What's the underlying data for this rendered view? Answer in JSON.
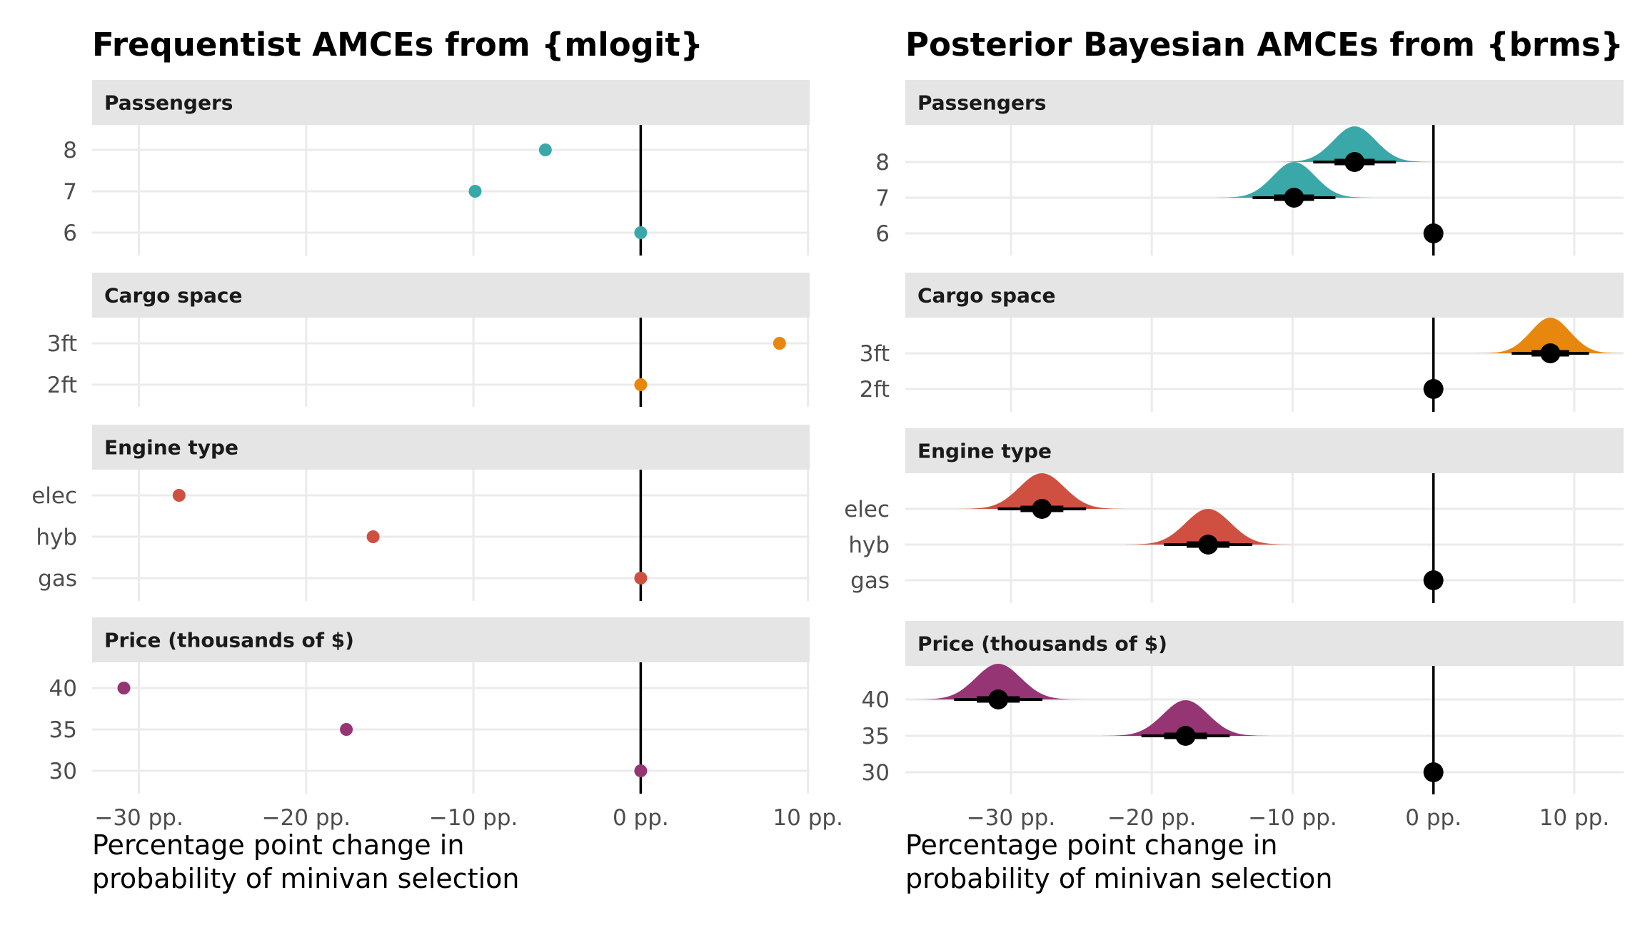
{
  "colors": {
    "background": "#ffffff",
    "strip": "#e5e5e5",
    "grid": "#ebebeb",
    "reference_line": "#000000",
    "passengers": "#3aa8a8",
    "cargo": "#e8870e",
    "engine": "#cf5040",
    "price": "#953574"
  },
  "chart_data": [
    {
      "type": "scatter",
      "title": "Frequentist AMCEs from {mlogit}",
      "xlabel": "Percentage point change in\nprobability of minivan selection",
      "xlabel_lines": [
        "Percentage point change in",
        "probability of minivan selection"
      ],
      "x_ticks": [
        -30,
        -20,
        -10,
        0,
        10
      ],
      "x_tick_labels": [
        "−30 pp.",
        "−20 pp.",
        "−10 pp.",
        "0 pp.",
        "10 pp."
      ],
      "xlim": [
        -32.8,
        10.1
      ],
      "reference_x": 0,
      "grid": true,
      "facets": [
        {
          "label": "Passengers",
          "color_key": "passengers",
          "levels": [
            {
              "name": "8",
              "value": -5.7
            },
            {
              "name": "7",
              "value": -9.9
            },
            {
              "name": "6",
              "value": 0
            }
          ]
        },
        {
          "label": "Cargo space",
          "color_key": "cargo",
          "levels": [
            {
              "name": "3ft",
              "value": 8.3
            },
            {
              "name": "2ft",
              "value": 0
            }
          ]
        },
        {
          "label": "Engine type",
          "color_key": "engine",
          "levels": [
            {
              "name": "elec",
              "value": -27.6
            },
            {
              "name": "hyb",
              "value": -16
            },
            {
              "name": "gas",
              "value": 0
            }
          ]
        },
        {
          "label": "Price (thousands of $)",
          "color_key": "price",
          "levels": [
            {
              "name": "40",
              "value": -30.9
            },
            {
              "name": "35",
              "value": -17.6
            },
            {
              "name": "30",
              "value": 0
            }
          ]
        }
      ]
    },
    {
      "type": "density",
      "title": "Posterior Bayesian AMCEs from {brms}",
      "xlabel": "Percentage point change in\nprobability of minivan selection",
      "xlabel_lines": [
        "Percentage point change in",
        "probability of minivan selection"
      ],
      "x_ticks": [
        -30,
        -20,
        -10,
        0,
        10
      ],
      "x_tick_labels": [
        "−30 pp.",
        "−20 pp.",
        "−10 pp.",
        "0 pp.",
        "10 pp."
      ],
      "xlim": [
        -37.5,
        13.5
      ],
      "reference_x": 0,
      "grid": true,
      "facets": [
        {
          "label": "Passengers",
          "color_key": "passengers",
          "levels": [
            {
              "name": "8",
              "value": -5.6,
              "sd": 1.5
            },
            {
              "name": "7",
              "value": -9.9,
              "sd": 1.5
            },
            {
              "name": "6",
              "value": 0,
              "sd": 0
            }
          ]
        },
        {
          "label": "Cargo space",
          "color_key": "cargo",
          "levels": [
            {
              "name": "3ft",
              "value": 8.3,
              "sd": 1.4
            },
            {
              "name": "2ft",
              "value": 0,
              "sd": 0
            }
          ]
        },
        {
          "label": "Engine type",
          "color_key": "engine",
          "levels": [
            {
              "name": "elec",
              "value": -27.8,
              "sd": 1.6
            },
            {
              "name": "hyb",
              "value": -16,
              "sd": 1.6
            },
            {
              "name": "gas",
              "value": 0,
              "sd": 0
            }
          ]
        },
        {
          "label": "Price (thousands of $)",
          "color_key": "price",
          "levels": [
            {
              "name": "40",
              "value": -30.9,
              "sd": 1.6
            },
            {
              "name": "35",
              "value": -17.6,
              "sd": 1.6
            },
            {
              "name": "30",
              "value": 0,
              "sd": 0
            }
          ]
        }
      ]
    }
  ]
}
